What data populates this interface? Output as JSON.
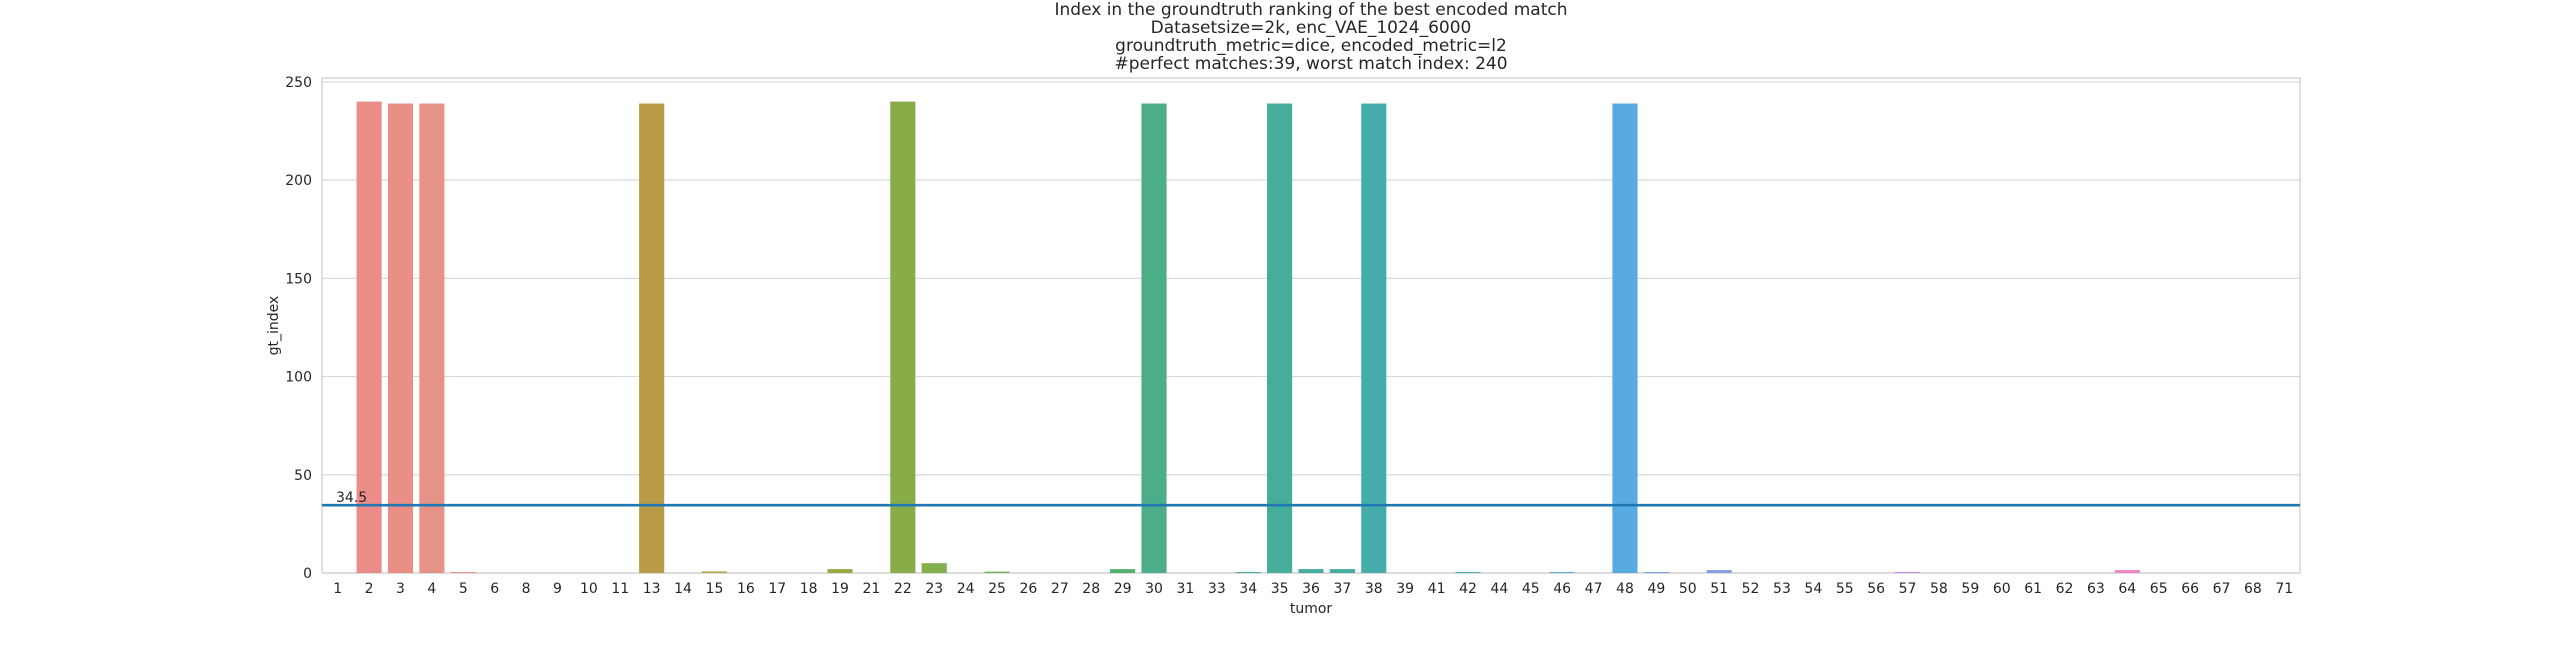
{
  "chart_data": {
    "type": "bar",
    "title_lines": [
      "Index in the groundtruth ranking of the best encoded match",
      "Datasetsize=2k, enc_VAE_1024_6000",
      "groundtruth_metric=dice, encoded_metric=l2",
      "#perfect matches:39, worst match index: 240"
    ],
    "xlabel": "tumor",
    "ylabel": "gt_index",
    "ylim": [
      0,
      252
    ],
    "yticks": [
      0,
      50,
      100,
      150,
      200,
      250
    ],
    "grid": true,
    "categories": [
      "1",
      "2",
      "3",
      "4",
      "5",
      "6",
      "8",
      "9",
      "10",
      "11",
      "13",
      "14",
      "15",
      "16",
      "17",
      "18",
      "19",
      "21",
      "22",
      "23",
      "24",
      "25",
      "26",
      "27",
      "28",
      "29",
      "30",
      "31",
      "33",
      "34",
      "35",
      "36",
      "37",
      "38",
      "39",
      "41",
      "42",
      "44",
      "45",
      "46",
      "47",
      "48",
      "49",
      "50",
      "51",
      "52",
      "53",
      "54",
      "55",
      "56",
      "57",
      "58",
      "59",
      "60",
      "61",
      "62",
      "63",
      "64",
      "65",
      "66",
      "67",
      "68",
      "71"
    ],
    "values": [
      0,
      240,
      239,
      239,
      0.5,
      0,
      0,
      0,
      0,
      0,
      239,
      0,
      0.8,
      0,
      0,
      0,
      2,
      0,
      240,
      5,
      0,
      0.7,
      0,
      0,
      0,
      2,
      239,
      0,
      0,
      0.5,
      239,
      2,
      2,
      239,
      0,
      0,
      0.5,
      0,
      0,
      0.5,
      0,
      239,
      0.5,
      0,
      1.5,
      0,
      0,
      0,
      0,
      0,
      0.5,
      0,
      0,
      0,
      0,
      0,
      0,
      1.5,
      0,
      0,
      0,
      0,
      0
    ],
    "colors": [
      "#ef8a89",
      "#ec8c89",
      "#e98f86",
      "#e79286",
      "#e59585",
      "#e39783",
      "#e09980",
      "#dd9b7e",
      "#d99e7a",
      "#d5a176",
      "#b99a45",
      "#bfa04b",
      "#b6a448",
      "#aea646",
      "#a6a845",
      "#9ea944",
      "#96aa44",
      "#8caa44",
      "#88ad48",
      "#82ae4c",
      "#7caf51",
      "#76b057",
      "#6fb15e",
      "#67b264",
      "#5fb36a",
      "#56b271",
      "#4cae88",
      "#48ae8d",
      "#47ae91",
      "#46ae95",
      "#45ad9a",
      "#45ad9f",
      "#45aca4",
      "#46acaa",
      "#48acaf",
      "#4aabb3",
      "#4eaab9",
      "#53a9bf",
      "#58a8c6",
      "#5ea6cd",
      "#63a4d4",
      "#58aae0",
      "#6aa3e0",
      "#79a0e1",
      "#869de3",
      "#929ae4",
      "#9d97e5",
      "#a894e6",
      "#b391e6",
      "#bd8ee6",
      "#c78be6",
      "#d088e5",
      "#d986e3",
      "#e184e0",
      "#e882dc",
      "#ee81d6",
      "#f081cf",
      "#f083c8",
      "#f085c1",
      "#f087ba",
      "#f089b3",
      "#f08aac",
      "#f08ba5"
    ],
    "hline": {
      "value": 34.5,
      "label": "34.5",
      "color": "#1f77b4"
    }
  }
}
